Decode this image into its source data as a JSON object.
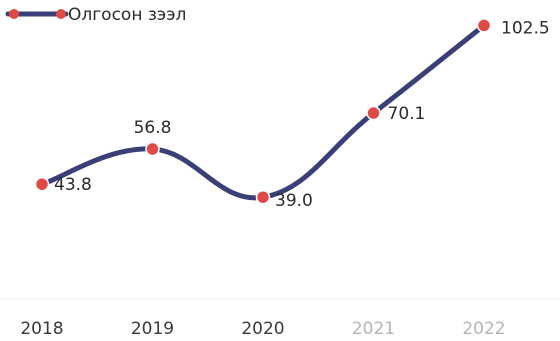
{
  "colors": {
    "line": "#3a3f78",
    "marker_fill": "#e04a45",
    "marker_stroke": "#ffffff",
    "grid": "#f2f2f2"
  },
  "chart_data": {
    "type": "line",
    "categories": [
      "2018",
      "2019",
      "2020",
      "2021",
      "2022"
    ],
    "series": [
      {
        "name": "Олгосон зээл",
        "values": [
          43.8,
          56.8,
          39.0,
          70.1,
          102.5
        ]
      }
    ],
    "data_labels": [
      "43.8",
      "56.8",
      "39.0",
      "70.1",
      "102.5"
    ],
    "faded_categories": [
      "2021",
      "2022"
    ],
    "legend": "top-left",
    "grid": false,
    "smooth": true
  }
}
